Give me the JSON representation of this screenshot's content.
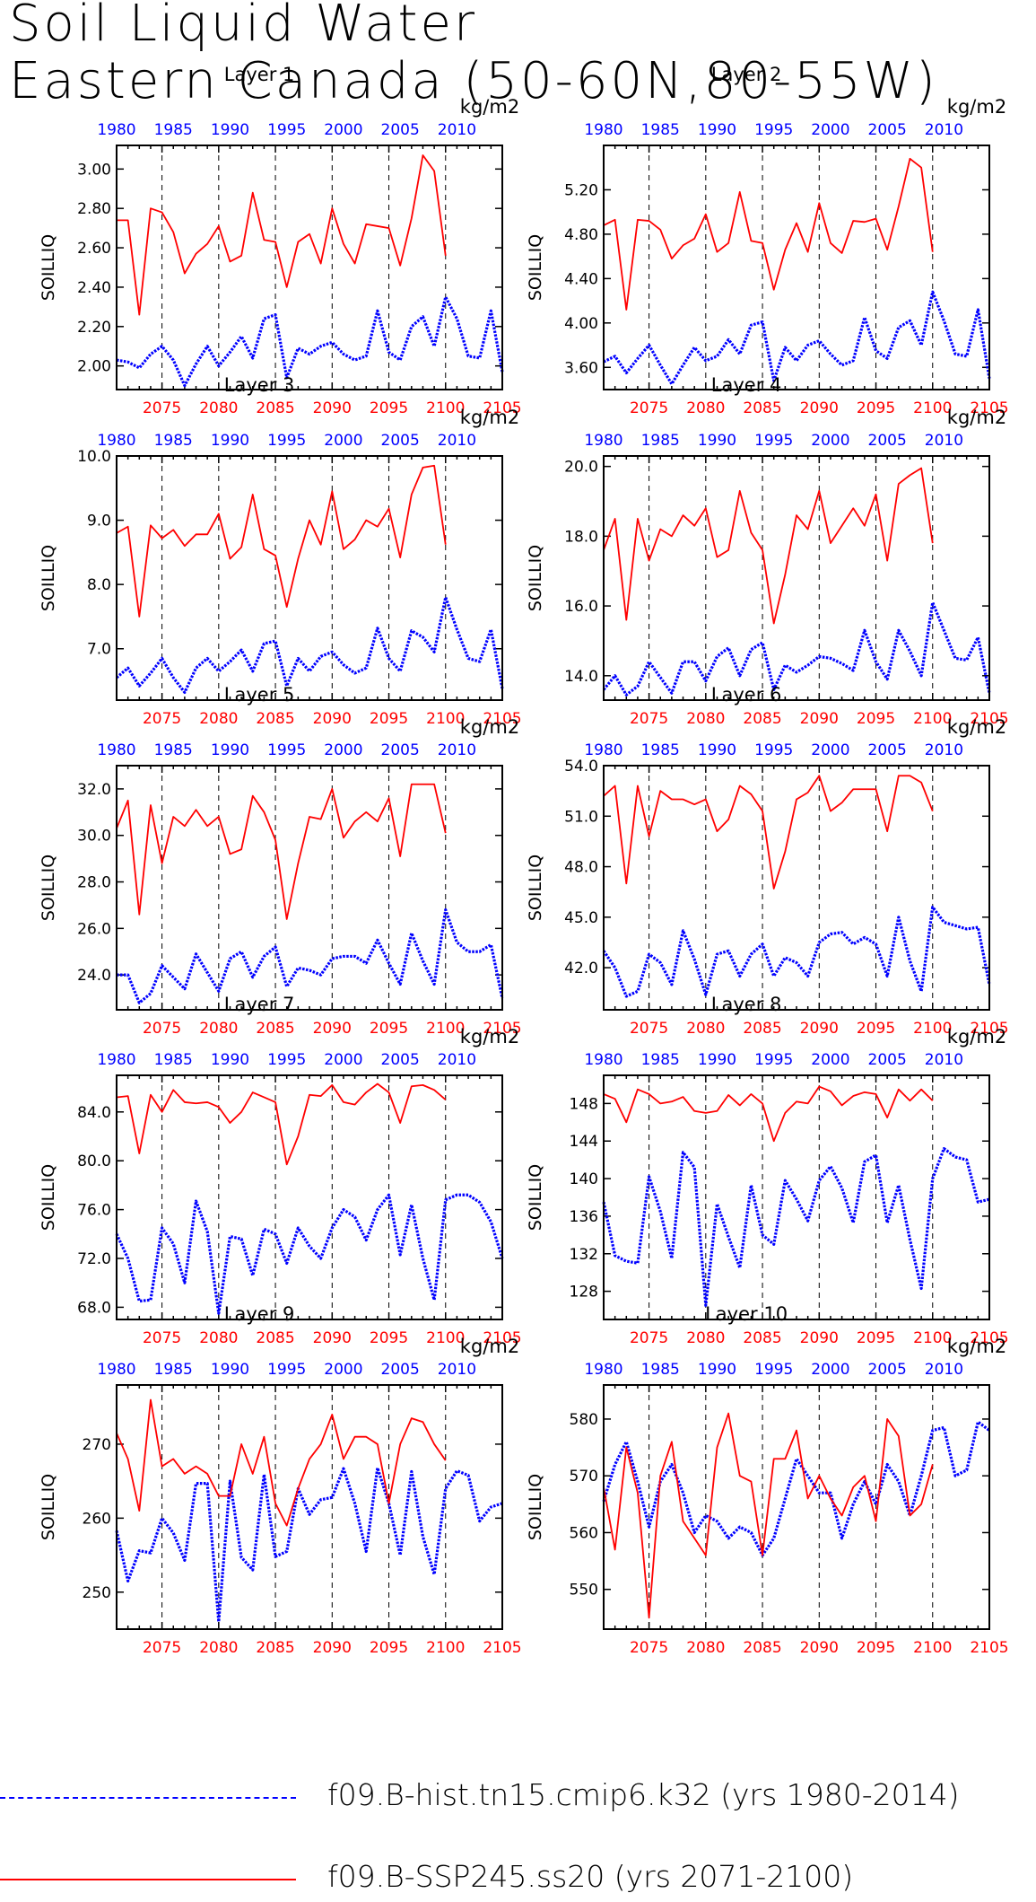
{
  "title_line1": "Soil Liquid Water",
  "title_line2": "Eastern Canada (50-60N,80-55W)",
  "units": "kg/m2",
  "ylabel": "SOILLIQ",
  "colors": {
    "hist": "#0000ff",
    "ssp": "#ff0000",
    "axis": "#000000"
  },
  "top_axis_ticks": [
    "1980",
    "1985",
    "1990",
    "1995",
    "2000",
    "2005",
    "2010"
  ],
  "bottom_axis_ticks": [
    "2075",
    "2080",
    "2085",
    "2090",
    "2095",
    "2100",
    "2105"
  ],
  "legend": {
    "hist_label": "f09.B-hist.tn15.cmip6.k32 (yrs 1980-2014)",
    "ssp_label": "f09.B-SSP245.ss20 (yrs 2071-2100)"
  },
  "chart_data": [
    {
      "type": "line",
      "title": "Layer 1",
      "ylabel": "SOILLIQ",
      "units": "kg/m2",
      "ylim": [
        1.88,
        3.12
      ],
      "yticks": [
        "2.00",
        "2.20",
        "2.40",
        "2.60",
        "2.80",
        "3.00"
      ],
      "ytick_values": [
        2.0,
        2.2,
        2.4,
        2.6,
        2.8,
        3.0
      ],
      "series": [
        {
          "name": "f09.B-hist.tn15.cmip6.k32 (yrs 1980-2014)",
          "x_start": 1980,
          "values": [
            2.03,
            2.02,
            1.99,
            2.06,
            2.1,
            2.03,
            1.9,
            2.01,
            2.1,
            2.0,
            2.07,
            2.15,
            2.04,
            2.24,
            2.26,
            1.94,
            2.09,
            2.06,
            2.1,
            2.12,
            2.06,
            2.03,
            2.05,
            2.28,
            2.07,
            2.03,
            2.2,
            2.25,
            2.1,
            2.35,
            2.24,
            2.05,
            2.04,
            2.28,
            1.97
          ]
        },
        {
          "name": "f09.B-SSP245.ss20 (yrs 2071-2100)",
          "x_start": 2071,
          "values": [
            2.74,
            2.74,
            2.26,
            2.8,
            2.78,
            2.68,
            2.47,
            2.57,
            2.62,
            2.71,
            2.53,
            2.56,
            2.88,
            2.64,
            2.63,
            2.4,
            2.63,
            2.67,
            2.52,
            2.8,
            2.62,
            2.52,
            2.72,
            2.71,
            2.7,
            2.51,
            2.75,
            3.07,
            2.99,
            2.56
          ]
        }
      ]
    },
    {
      "type": "line",
      "title": "Layer 2",
      "ylabel": "SOILLIQ",
      "units": "kg/m2",
      "ylim": [
        3.4,
        5.6
      ],
      "yticks": [
        "3.60",
        "4.00",
        "4.40",
        "4.80",
        "5.20"
      ],
      "ytick_values": [
        3.6,
        4.0,
        4.4,
        4.8,
        5.2
      ],
      "series": [
        {
          "name": "f09.B-hist.tn15.cmip6.k32 (yrs 1980-2014)",
          "x_start": 1980,
          "values": [
            3.65,
            3.7,
            3.55,
            3.68,
            3.8,
            3.62,
            3.45,
            3.62,
            3.78,
            3.66,
            3.7,
            3.85,
            3.72,
            3.98,
            4.01,
            3.48,
            3.78,
            3.66,
            3.8,
            3.84,
            3.72,
            3.62,
            3.66,
            4.05,
            3.75,
            3.68,
            3.96,
            4.02,
            3.8,
            4.28,
            4.02,
            3.72,
            3.7,
            4.12,
            3.5
          ]
        },
        {
          "name": "f09.B-SSP245.ss20 (yrs 2071-2100)",
          "x_start": 2071,
          "values": [
            4.88,
            4.93,
            4.12,
            4.93,
            4.92,
            4.84,
            4.58,
            4.7,
            4.76,
            4.98,
            4.64,
            4.72,
            5.18,
            4.74,
            4.72,
            4.3,
            4.66,
            4.9,
            4.64,
            5.08,
            4.72,
            4.63,
            4.92,
            4.91,
            4.94,
            4.66,
            5.05,
            5.48,
            5.4,
            4.64
          ]
        }
      ]
    },
    {
      "type": "line",
      "title": "Layer 3",
      "ylabel": "SOILLIQ",
      "units": "kg/m2",
      "ylim": [
        6.2,
        10.0
      ],
      "yticks": [
        "7.0",
        "8.0",
        "9.0",
        "10.0"
      ],
      "ytick_values": [
        7.0,
        8.0,
        9.0,
        10.0
      ],
      "series": [
        {
          "name": "f09.B-hist.tn15.cmip6.k32 (yrs 1980-2014)",
          "x_start": 1980,
          "values": [
            6.55,
            6.7,
            6.42,
            6.62,
            6.85,
            6.55,
            6.32,
            6.7,
            6.85,
            6.65,
            6.8,
            6.98,
            6.65,
            7.08,
            7.12,
            6.42,
            6.85,
            6.65,
            6.88,
            6.95,
            6.75,
            6.62,
            6.7,
            7.32,
            6.85,
            6.65,
            7.28,
            7.18,
            6.95,
            7.8,
            7.3,
            6.85,
            6.8,
            7.3,
            6.38
          ]
        },
        {
          "name": "f09.B-SSP245.ss20 (yrs 2071-2100)",
          "x_start": 2071,
          "values": [
            8.8,
            8.9,
            7.5,
            8.92,
            8.72,
            8.85,
            8.6,
            8.78,
            8.78,
            9.1,
            8.4,
            8.58,
            9.4,
            8.55,
            8.45,
            7.65,
            8.4,
            9.0,
            8.62,
            9.45,
            8.55,
            8.7,
            9.0,
            8.9,
            9.18,
            8.42,
            9.4,
            9.82,
            9.85,
            8.62
          ]
        }
      ]
    },
    {
      "type": "line",
      "title": "Layer 4",
      "ylabel": "SOILLIQ",
      "units": "kg/m2",
      "ylim": [
        13.3,
        20.3
      ],
      "yticks": [
        "14.0",
        "16.0",
        "18.0",
        "20.0"
      ],
      "ytick_values": [
        14.0,
        16.0,
        18.0,
        20.0
      ],
      "series": [
        {
          "name": "f09.B-hist.tn15.cmip6.k32 (yrs 1980-2014)",
          "x_start": 1980,
          "values": [
            13.6,
            14.0,
            13.45,
            13.7,
            14.4,
            13.95,
            13.5,
            14.4,
            14.4,
            13.85,
            14.55,
            14.8,
            14.0,
            14.75,
            14.95,
            13.6,
            14.3,
            14.1,
            14.3,
            14.55,
            14.5,
            14.35,
            14.15,
            15.3,
            14.4,
            13.9,
            15.3,
            14.7,
            14.0,
            16.1,
            15.3,
            14.5,
            14.45,
            15.1,
            13.5
          ]
        },
        {
          "name": "f09.B-SSP245.ss20 (yrs 2071-2100)",
          "x_start": 2071,
          "values": [
            17.6,
            18.5,
            15.6,
            18.5,
            17.3,
            18.2,
            18.0,
            18.6,
            18.3,
            18.8,
            17.4,
            17.6,
            19.3,
            18.1,
            17.6,
            15.5,
            16.9,
            18.6,
            18.2,
            19.3,
            17.8,
            18.3,
            18.8,
            18.3,
            19.2,
            17.3,
            19.5,
            19.75,
            19.95,
            17.8
          ]
        }
      ]
    },
    {
      "type": "line",
      "title": "Layer 5",
      "ylabel": "SOILLIQ",
      "units": "kg/m2",
      "ylim": [
        22.5,
        33.0
      ],
      "yticks": [
        "24.0",
        "26.0",
        "28.0",
        "30.0",
        "32.0"
      ],
      "ytick_values": [
        24.0,
        26.0,
        28.0,
        30.0,
        32.0
      ],
      "series": [
        {
          "name": "f09.B-hist.tn15.cmip6.k32 (yrs 1980-2014)",
          "x_start": 1980,
          "values": [
            24.0,
            24.0,
            22.8,
            23.2,
            24.4,
            23.9,
            23.4,
            24.9,
            24.1,
            23.3,
            24.7,
            25.0,
            23.9,
            24.8,
            25.2,
            23.5,
            24.3,
            24.2,
            24.0,
            24.7,
            24.8,
            24.8,
            24.5,
            25.5,
            24.5,
            23.6,
            25.8,
            24.6,
            23.6,
            26.8,
            25.4,
            25.0,
            25.0,
            25.3,
            23.0
          ]
        },
        {
          "name": "f09.B-SSP245.ss20 (yrs 2071-2100)",
          "x_start": 2071,
          "values": [
            30.3,
            31.5,
            26.6,
            31.3,
            28.8,
            30.8,
            30.4,
            31.1,
            30.4,
            30.8,
            29.2,
            29.4,
            31.7,
            31.0,
            29.8,
            26.4,
            28.8,
            30.8,
            30.7,
            32.0,
            29.9,
            30.6,
            31.0,
            30.6,
            31.6,
            29.1,
            32.2,
            32.2,
            32.2,
            30.1
          ]
        }
      ]
    },
    {
      "type": "line",
      "title": "Layer 6",
      "ylabel": "SOILLIQ",
      "units": "kg/m2",
      "ylim": [
        39.5,
        54.0
      ],
      "yticks": [
        "42.0",
        "45.0",
        "48.0",
        "51.0",
        "54.0"
      ],
      "ytick_values": [
        42.0,
        45.0,
        48.0,
        51.0,
        54.0
      ],
      "series": [
        {
          "name": "f09.B-hist.tn15.cmip6.k32 (yrs 1980-2014)",
          "x_start": 1980,
          "values": [
            43.0,
            42.0,
            40.3,
            40.6,
            42.8,
            42.3,
            41.0,
            44.2,
            42.5,
            40.4,
            42.8,
            43.0,
            41.5,
            42.8,
            43.4,
            41.5,
            42.6,
            42.3,
            41.5,
            43.5,
            44.0,
            44.1,
            43.4,
            43.8,
            43.4,
            41.5,
            45.0,
            42.4,
            40.6,
            45.6,
            44.7,
            44.5,
            44.3,
            44.4,
            41.0
          ]
        },
        {
          "name": "f09.B-SSP245.ss20 (yrs 2071-2100)",
          "x_start": 2071,
          "values": [
            52.2,
            52.8,
            47.0,
            52.8,
            49.8,
            52.5,
            52.0,
            52.0,
            51.7,
            52.0,
            50.1,
            50.8,
            52.8,
            52.3,
            51.3,
            46.7,
            48.9,
            52.0,
            52.4,
            53.4,
            51.3,
            51.8,
            52.6,
            52.6,
            52.6,
            50.1,
            53.4,
            53.4,
            53.0,
            51.3
          ]
        }
      ]
    },
    {
      "type": "line",
      "title": "Layer 7",
      "ylabel": "SOILLIQ",
      "units": "kg/m2",
      "ylim": [
        67.0,
        87.0
      ],
      "yticks": [
        "68.0",
        "72.0",
        "76.0",
        "80.0",
        "84.0"
      ],
      "ytick_values": [
        68.0,
        72.0,
        76.0,
        80.0,
        84.0
      ],
      "series": [
        {
          "name": "f09.B-hist.tn15.cmip6.k32 (yrs 1980-2014)",
          "x_start": 1980,
          "values": [
            74.0,
            72.0,
            68.5,
            68.6,
            74.5,
            73.2,
            70.0,
            76.7,
            74.2,
            67.5,
            73.8,
            73.6,
            70.6,
            74.4,
            74.0,
            71.6,
            74.5,
            73.0,
            72.0,
            74.5,
            76.0,
            75.4,
            73.5,
            76.0,
            77.2,
            72.3,
            76.4,
            72.0,
            68.6,
            76.8,
            77.2,
            77.2,
            76.6,
            75.0,
            72.0
          ]
        },
        {
          "name": "f09.B-SSP245.ss20 (yrs 2071-2100)",
          "x_start": 2071,
          "values": [
            85.2,
            85.3,
            80.6,
            85.4,
            84.0,
            85.8,
            84.8,
            84.7,
            84.8,
            84.4,
            83.1,
            84.0,
            85.6,
            85.2,
            84.8,
            79.7,
            82.0,
            85.4,
            85.3,
            86.2,
            84.8,
            84.6,
            85.6,
            86.3,
            85.6,
            83.1,
            86.1,
            86.2,
            85.8,
            85.0
          ]
        }
      ]
    },
    {
      "type": "line",
      "title": "Layer 8",
      "ylabel": "SOILLIQ",
      "units": "kg/m2",
      "ylim": [
        125.0,
        151.0
      ],
      "yticks": [
        "128",
        "132",
        "136",
        "140",
        "144",
        "148"
      ],
      "ytick_values": [
        128,
        132,
        136,
        140,
        144,
        148
      ],
      "series": [
        {
          "name": "f09.B-hist.tn15.cmip6.k32 (yrs 1980-2014)",
          "x_start": 1980,
          "values": [
            137.5,
            131.8,
            131.2,
            131.0,
            140.2,
            136.5,
            131.5,
            142.8,
            141.2,
            126.5,
            137.3,
            133.8,
            130.5,
            139.3,
            134.0,
            133.0,
            139.8,
            137.8,
            135.5,
            139.8,
            141.3,
            139.0,
            135.3,
            141.8,
            142.5,
            135.3,
            139.3,
            133.5,
            128.3,
            140.0,
            143.2,
            142.3,
            142.0,
            137.5,
            137.8
          ]
        },
        {
          "name": "f09.B-SSP245.ss20 (yrs 2071-2100)",
          "x_start": 2071,
          "values": [
            149.0,
            148.5,
            146.0,
            149.5,
            149.0,
            148.0,
            148.2,
            148.7,
            147.2,
            147.0,
            147.2,
            148.9,
            147.8,
            149.0,
            148.0,
            144.0,
            147.0,
            148.2,
            148.0,
            149.8,
            149.3,
            147.8,
            148.8,
            149.2,
            149.0,
            146.5,
            149.5,
            148.3,
            149.5,
            148.3
          ]
        }
      ]
    },
    {
      "type": "line",
      "title": "Layer 9",
      "ylabel": "SOILLIQ",
      "units": "kg/m2",
      "ylim": [
        245.0,
        278.0
      ],
      "yticks": [
        "250",
        "260",
        "270"
      ],
      "ytick_values": [
        250,
        260,
        270
      ],
      "series": [
        {
          "name": "f09.B-hist.tn15.cmip6.k32 (yrs 1980-2014)",
          "x_start": 1980,
          "values": [
            258.3,
            251.5,
            255.6,
            255.3,
            260.0,
            258.0,
            254.3,
            264.7,
            264.7,
            246.0,
            265.0,
            254.7,
            253.0,
            265.9,
            254.8,
            255.5,
            264.0,
            260.5,
            262.5,
            262.8,
            266.7,
            262.0,
            255.5,
            266.8,
            262.0,
            255.0,
            266.3,
            257.5,
            252.4,
            264.0,
            266.4,
            265.8,
            259.6,
            261.5,
            262.0
          ]
        },
        {
          "name": "f09.B-SSP245.ss20 (yrs 2071-2100)",
          "x_start": 2071,
          "values": [
            271.5,
            268.0,
            261.0,
            276.0,
            267.0,
            268.0,
            266.0,
            267.0,
            266.0,
            263.0,
            263.0,
            270.0,
            266.0,
            271.0,
            262.0,
            259.0,
            264.0,
            268.0,
            270.0,
            274.0,
            268.0,
            271.0,
            271.0,
            270.0,
            262.0,
            270.0,
            273.5,
            273.0,
            270.0,
            267.8
          ]
        }
      ]
    },
    {
      "type": "line",
      "title": "Layer 10",
      "ylabel": "SOILLIQ",
      "units": "kg/m2",
      "ylim": [
        543.0,
        586.0
      ],
      "yticks": [
        "550",
        "560",
        "570",
        "580"
      ],
      "ytick_values": [
        550,
        560,
        570,
        580
      ],
      "series": [
        {
          "name": "f09.B-hist.tn15.cmip6.k32 (yrs 1980-2014)",
          "x_start": 1980,
          "values": [
            565.5,
            572.0,
            576.0,
            569.0,
            561.0,
            569.0,
            572.0,
            567.0,
            560.0,
            563.0,
            562.0,
            559.0,
            561.0,
            560.0,
            556.0,
            559.0,
            566.0,
            573.0,
            570.0,
            567.0,
            567.0,
            559.0,
            565.0,
            569.0,
            565.0,
            572.0,
            569.0,
            563.0,
            570.0,
            578.0,
            578.5,
            570.0,
            571.0,
            579.5,
            578.0
          ]
        },
        {
          "name": "f09.B-SSP245.ss20 (yrs 2071-2100)",
          "x_start": 2071,
          "values": [
            568.0,
            557.0,
            575.0,
            567.0,
            545.0,
            570.0,
            576.0,
            562.0,
            559.0,
            556.0,
            575.0,
            581.0,
            570.0,
            569.0,
            556.0,
            573.0,
            573.0,
            578.0,
            566.0,
            570.0,
            566.0,
            563.0,
            568.0,
            570.0,
            562.0,
            580.0,
            577.0,
            563.0,
            565.0,
            572.0
          ]
        }
      ]
    }
  ]
}
